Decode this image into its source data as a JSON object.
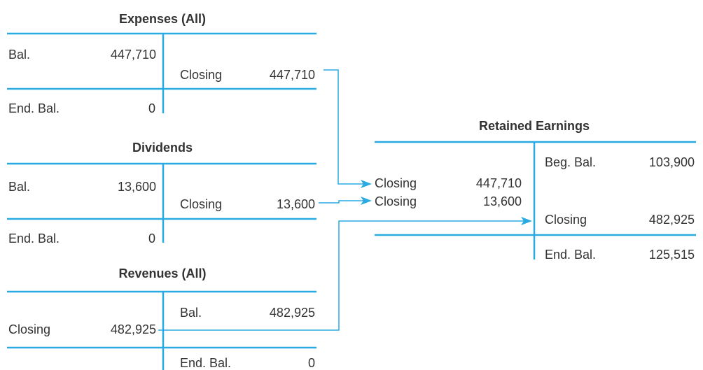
{
  "accounts": [
    {
      "title": "Expenses (All)",
      "entries": [
        {
          "label": "Bal.",
          "amount": "447,710"
        },
        {
          "label": "Closing",
          "amount": "447,710"
        },
        {
          "label": "End. Bal.",
          "amount": "0"
        }
      ]
    },
    {
      "title": "Dividends",
      "entries": [
        {
          "label": "Bal.",
          "amount": "13,600"
        },
        {
          "label": "Closing",
          "amount": "13,600"
        },
        {
          "label": "End. Bal.",
          "amount": "0"
        }
      ]
    },
    {
      "title": "Revenues (All)",
      "entries": [
        {
          "label": "Bal.",
          "amount": "482,925"
        },
        {
          "label": "Closing",
          "amount": "482,925"
        },
        {
          "label": "End. Bal.",
          "amount": "0"
        }
      ]
    },
    {
      "title": "Retained Earnings",
      "entries": [
        {
          "label": "Beg. Bal.",
          "amount": "103,900"
        },
        {
          "label": "Closing",
          "amount": "447,710"
        },
        {
          "label": "Closing",
          "amount": "13,600"
        },
        {
          "label": "Closing",
          "amount": "482,925"
        },
        {
          "label": "End. Bal.",
          "amount": "125,515"
        }
      ]
    }
  ]
}
